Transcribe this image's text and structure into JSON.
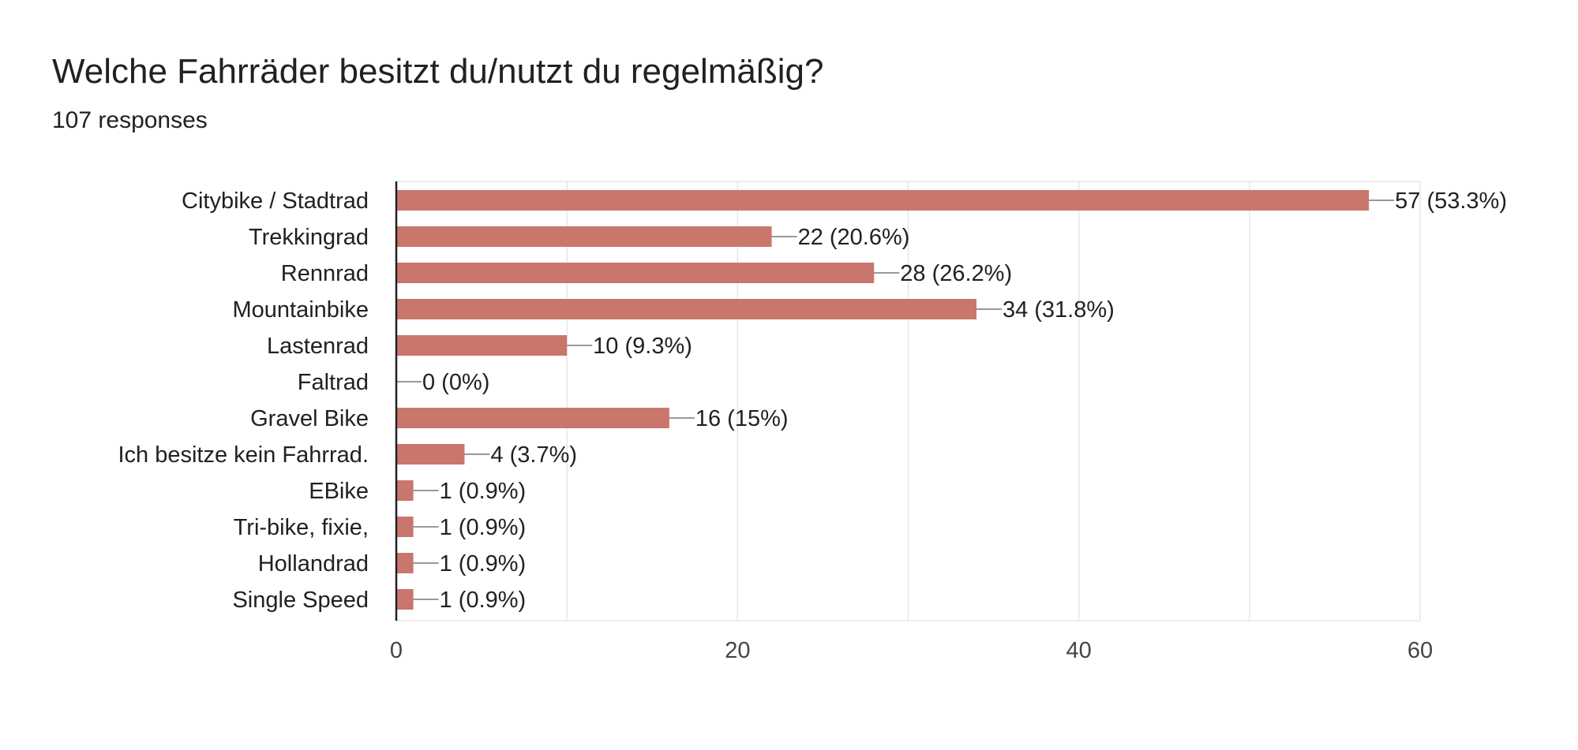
{
  "question": {
    "title": "Welche Fahrräder besitzt du/nutzt du regelmäßig?",
    "responses": "107 responses"
  },
  "chart_data": {
    "type": "bar",
    "orientation": "horizontal",
    "categories": [
      "Citybike / Stadtrad",
      "Trekkingrad",
      "Rennrad",
      "Mountainbike",
      "Lastenrad",
      "Faltrad",
      "Gravel Bike",
      "Ich besitze kein Fahrrad.",
      "EBike",
      "Tri-bike, fixie,",
      "Hollandrad",
      "Single Speed"
    ],
    "values": [
      57,
      22,
      28,
      34,
      10,
      0,
      16,
      4,
      1,
      1,
      1,
      1
    ],
    "value_labels": [
      "57 (53.3%)",
      "22 (20.6%)",
      "28 (26.2%)",
      "34 (31.8%)",
      "10 (9.3%)",
      "0 (0%)",
      "16 (15%)",
      "4 (3.7%)",
      "1 (0.9%)",
      "1 (0.9%)",
      "1 (0.9%)",
      "1 (0.9%)"
    ],
    "x_ticks": [
      0,
      20,
      40,
      60
    ],
    "xlim": [
      0,
      60
    ],
    "grid": true,
    "bar_color": "#c9766d",
    "grid_color": "#e6e6e6",
    "axis_color": "#202124",
    "leader_color": "#999999"
  }
}
